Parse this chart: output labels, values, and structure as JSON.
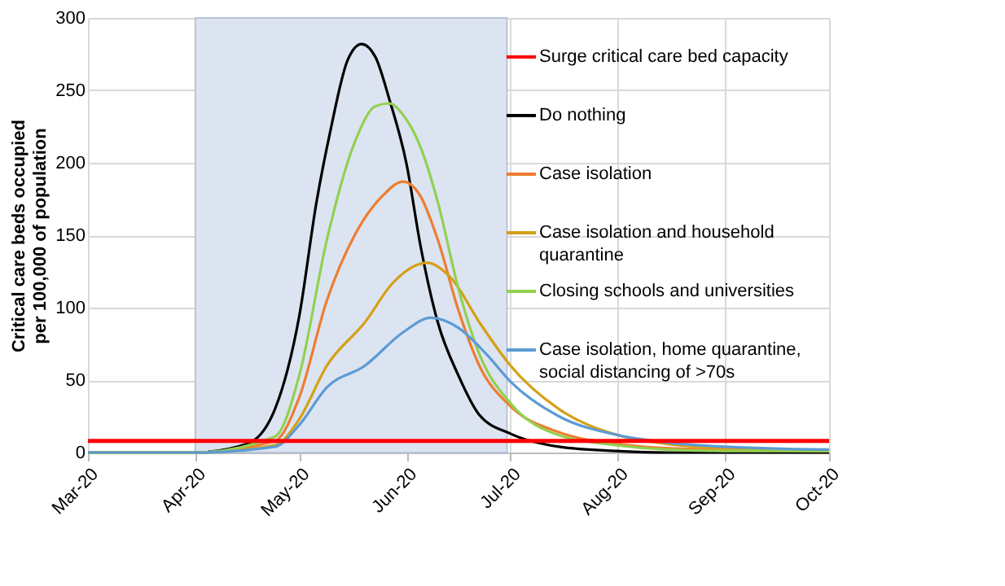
{
  "chart_data": {
    "type": "line",
    "ylabel": "Critical care beds occupied per 100,000 of population",
    "xlim": [
      "2020-03-01",
      "2020-10-01"
    ],
    "xticks": [
      {
        "value": "2020-03-01",
        "label": "Mar-20"
      },
      {
        "value": "2020-04-01",
        "label": "Apr-20"
      },
      {
        "value": "2020-05-01",
        "label": "May-20"
      },
      {
        "value": "2020-06-01",
        "label": "Jun-20"
      },
      {
        "value": "2020-07-01",
        "label": "Jul-20"
      },
      {
        "value": "2020-08-01",
        "label": "Aug-20"
      },
      {
        "value": "2020-09-01",
        "label": "Sep-20"
      },
      {
        "value": "2020-10-01",
        "label": "Oct-20"
      }
    ],
    "ylim": [
      0,
      300
    ],
    "yticks": [
      0,
      50,
      100,
      150,
      200,
      250,
      300
    ],
    "grid": true,
    "legend": "right",
    "marker": "none",
    "line_style": "solid",
    "ref_lines": [
      {
        "axis": "y",
        "value": 8,
        "label": "Surge critical care bed capacity",
        "color": "#ff0000"
      }
    ],
    "bands": [
      {
        "axis": "x",
        "from": "2020-04-01",
        "to": "2020-06-30",
        "color": "#dce4f2"
      }
    ],
    "series": [
      {
        "name": "Do nothing",
        "color": "#000000",
        "x": [
          "2020-03-01",
          "2020-04-01",
          "2020-04-16",
          "2020-04-24",
          "2020-05-01",
          "2020-05-06",
          "2020-05-10",
          "2020-05-15",
          "2020-05-19",
          "2020-05-23",
          "2020-05-27",
          "2020-06-01",
          "2020-06-05",
          "2020-06-10",
          "2020-06-16",
          "2020-06-22",
          "2020-07-01",
          "2020-07-15",
          "2020-08-01",
          "2020-08-15",
          "2020-09-01",
          "2020-10-01"
        ],
        "values": [
          0,
          0,
          6,
          30,
          94,
          173,
          222,
          271,
          282,
          273,
          244,
          199,
          143,
          90,
          53,
          26,
          13,
          4,
          1,
          0,
          0,
          0
        ]
      },
      {
        "name": "Case isolation",
        "color": "#ed7d31",
        "x": [
          "2020-03-01",
          "2020-04-01",
          "2020-04-24",
          "2020-05-01",
          "2020-05-09",
          "2020-05-17",
          "2020-05-25",
          "2020-05-31",
          "2020-06-05",
          "2020-06-10",
          "2020-06-16",
          "2020-06-22",
          "2020-07-01",
          "2020-07-15",
          "2020-08-01",
          "2020-08-15",
          "2020-09-01",
          "2020-10-01"
        ],
        "values": [
          0,
          0,
          8,
          38,
          105,
          150,
          177,
          187,
          177,
          147,
          98,
          60,
          32,
          14,
          6,
          3,
          2,
          1
        ]
      },
      {
        "name": "Case isolation and household quarantine",
        "color": "#d4a017",
        "x": [
          "2020-03-01",
          "2020-04-01",
          "2020-04-24",
          "2020-05-01",
          "2020-05-09",
          "2020-05-20",
          "2020-05-28",
          "2020-06-07",
          "2020-06-14",
          "2020-06-22",
          "2020-07-01",
          "2020-07-15",
          "2020-08-01",
          "2020-08-15",
          "2020-09-01",
          "2020-10-01"
        ],
        "values": [
          0,
          0,
          5,
          23,
          60,
          90,
          117,
          131,
          120,
          90,
          60,
          30,
          12,
          6,
          3,
          1
        ]
      },
      {
        "name": "Closing schools and universities",
        "color": "#92d050",
        "x": [
          "2020-03-01",
          "2020-04-01",
          "2020-04-24",
          "2020-05-01",
          "2020-05-09",
          "2020-05-17",
          "2020-05-23",
          "2020-05-27",
          "2020-05-31",
          "2020-06-05",
          "2020-06-10",
          "2020-06-16",
          "2020-06-22",
          "2020-07-01",
          "2020-07-15",
          "2020-08-01",
          "2020-08-15",
          "2020-09-01",
          "2020-10-01"
        ],
        "values": [
          0,
          0,
          11,
          53,
          147,
          214,
          239,
          241,
          233,
          211,
          173,
          113,
          68,
          34,
          12,
          5,
          2,
          1,
          1
        ]
      },
      {
        "name": "Case isolation, home quarantine, social distancing of >70s",
        "color": "#5b9bd5",
        "x": [
          "2020-03-01",
          "2020-04-01",
          "2020-04-24",
          "2020-05-01",
          "2020-05-09",
          "2020-05-20",
          "2020-05-31",
          "2020-06-08",
          "2020-06-16",
          "2020-06-24",
          "2020-07-01",
          "2020-07-15",
          "2020-08-01",
          "2020-08-15",
          "2020-09-01",
          "2020-10-01"
        ],
        "values": [
          0,
          0,
          4,
          19,
          45,
          60,
          83,
          93,
          86,
          68,
          49,
          25,
          12,
          7,
          4,
          2
        ]
      }
    ]
  }
}
